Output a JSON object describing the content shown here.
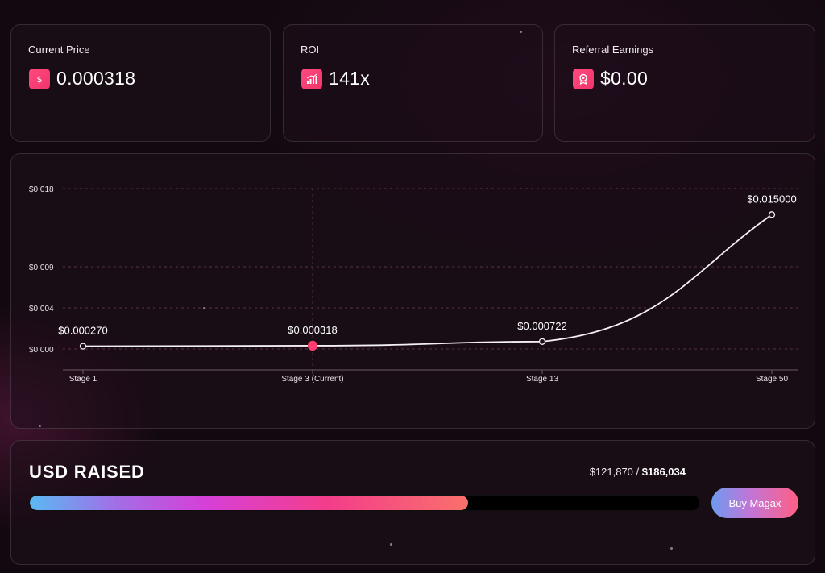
{
  "stats": [
    {
      "label": "Current Price",
      "value": "0.000318",
      "icon": "dollar-icon"
    },
    {
      "label": "ROI",
      "value": "141x",
      "icon": "chart-bars-icon"
    },
    {
      "label": "Referral Earnings",
      "value": "$0.00",
      "icon": "badge-icon"
    }
  ],
  "chart_data": {
    "type": "line",
    "categories": [
      "Stage 1",
      "Stage 3 (Current)",
      "Stage 13",
      "Stage 50"
    ],
    "values": [
      0.00027,
      0.000318,
      0.000722,
      0.015
    ],
    "point_labels": [
      "$0.000270",
      "$0.000318",
      "$0.000722",
      "$0.015000"
    ],
    "current_index": 1,
    "y_ticks": [
      {
        "value": 0,
        "label": "$0.000"
      },
      {
        "value": 0.004,
        "label": "$0.004"
      },
      {
        "value": 0.009,
        "label": "$0.009"
      },
      {
        "value": 0.018,
        "label": "$0.018"
      }
    ],
    "y_scale": "nonlinear",
    "grid": true,
    "colors": {
      "line": "#f5f0f4",
      "current": "#ff3d6e",
      "grid": "#5a2f4f"
    }
  },
  "raised": {
    "title": "USD RAISED",
    "raised_amount": "$121,870",
    "separator": " / ",
    "goal_amount": "$186,034",
    "progress": 0.655,
    "button_label": "Buy Magax"
  }
}
